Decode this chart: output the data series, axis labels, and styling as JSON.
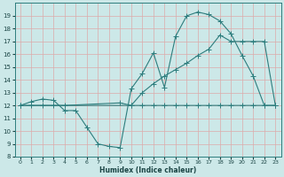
{
  "bg_color": "#cce8e8",
  "grid_color": "#aacccc",
  "line_color": "#2d7d7d",
  "xlabel": "Humidex (Indice chaleur)",
  "ylim": [
    8,
    20
  ],
  "xlim": [
    -0.5,
    23.5
  ],
  "yticks": [
    8,
    9,
    10,
    11,
    12,
    13,
    14,
    15,
    16,
    17,
    18,
    19
  ],
  "xticks": [
    0,
    1,
    2,
    3,
    4,
    5,
    6,
    7,
    8,
    9,
    10,
    11,
    12,
    13,
    14,
    15,
    16,
    17,
    18,
    19,
    20,
    21,
    22,
    23
  ],
  "line1_x": [
    0,
    1,
    2,
    3,
    4,
    5,
    6,
    7,
    8,
    9,
    10,
    11,
    12,
    13,
    14,
    15,
    16,
    17,
    18,
    19,
    20,
    21,
    22,
    23
  ],
  "line1_y": [
    12,
    12.3,
    12.5,
    12.4,
    11.6,
    11.6,
    10.3,
    9.0,
    8.8,
    8.7,
    13.3,
    14.5,
    16.1,
    13.4,
    17.4,
    19.0,
    19.3,
    19.1,
    18.6,
    17.6,
    15.9,
    14.3,
    12.0,
    12.0
  ],
  "line2_x": [
    0,
    10,
    11,
    12,
    13,
    14,
    15,
    16,
    17,
    18,
    19,
    20,
    21,
    22,
    23
  ],
  "line2_y": [
    12,
    12.0,
    13.0,
    13.7,
    14.3,
    14.8,
    15.3,
    15.9,
    16.4,
    17.5,
    17.0,
    17.0,
    17.0,
    17.0,
    12.0
  ],
  "line3_x": [
    0,
    1,
    2,
    3,
    4,
    9,
    10,
    11,
    12,
    13,
    14,
    15,
    16,
    17,
    18,
    19,
    20,
    21,
    22,
    23
  ],
  "line3_y": [
    12,
    12,
    12,
    12,
    12,
    12.2,
    12,
    12,
    12,
    12,
    12,
    12,
    12,
    12,
    12,
    12,
    12,
    12,
    12,
    12
  ]
}
